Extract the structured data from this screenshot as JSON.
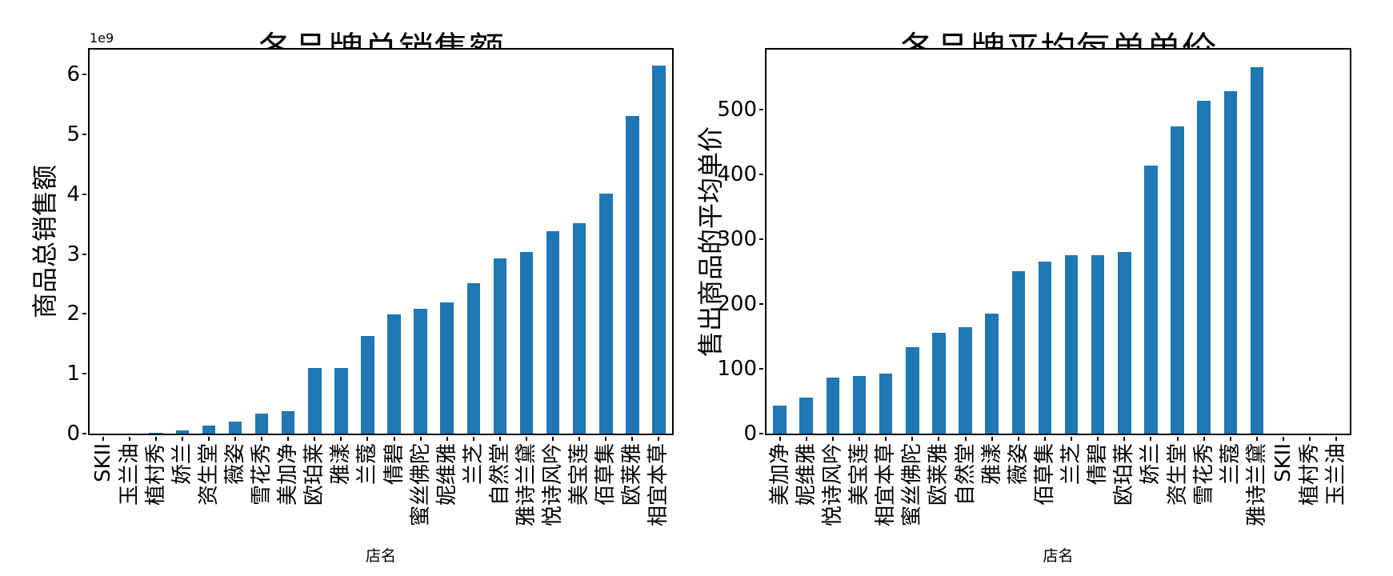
{
  "style": {
    "background": "#ffffff",
    "bar_color": "#1f77b4",
    "spine_color": "#000000",
    "text_color": "#000000"
  },
  "chart_data": [
    {
      "type": "bar",
      "title": "各品牌总销售额",
      "xlabel": "店名",
      "ylabel": "商品总销售额",
      "y_offset_text": "1e9",
      "value_unit_multiplier": 1000000000,
      "categories": [
        "SKII",
        "玉兰油",
        "植村秀",
        "娇兰",
        "资生堂",
        "薇姿",
        "雪花秀",
        "美加净",
        "欧珀莱",
        "雅漾",
        "兰蔻",
        "倩碧",
        "蜜丝佛陀",
        "妮维雅",
        "兰芝",
        "自然堂",
        "雅诗兰黛",
        "悦诗风吟",
        "美宝莲",
        "佰草集",
        "欧莱雅",
        "相宜本草"
      ],
      "values": [
        0.002,
        0.005,
        0.009,
        0.05,
        0.14,
        0.2,
        0.34,
        0.37,
        1.1,
        1.1,
        1.63,
        1.99,
        2.08,
        2.2,
        2.52,
        2.93,
        3.03,
        3.38,
        3.52,
        4.01,
        5.31,
        6.15
      ],
      "yticks": [
        0,
        1,
        2,
        3,
        4,
        5,
        6
      ],
      "ylim": [
        0,
        6.42
      ],
      "grid": false,
      "legend": null,
      "bar_orientation": "vertical",
      "xtick_rotation_deg": 90
    },
    {
      "type": "bar",
      "title": "各品牌平均每单单价",
      "xlabel": "店名",
      "ylabel": "售出商品的平均单价",
      "y_offset_text": "",
      "value_unit_multiplier": 1,
      "categories": [
        "美加净",
        "妮维雅",
        "悦诗风吟",
        "美宝莲",
        "相宜本草",
        "蜜丝佛陀",
        "欧莱雅",
        "自然堂",
        "雅漾",
        "薇姿",
        "佰草集",
        "兰芝",
        "倩碧",
        "欧珀莱",
        "娇兰",
        "资生堂",
        "雪花秀",
        "兰蔻",
        "雅诗兰黛",
        "SKII",
        "植村秀",
        "玉兰油"
      ],
      "values": [
        43,
        56,
        86,
        89,
        93,
        134,
        156,
        164,
        185,
        251,
        265,
        275,
        276,
        281,
        414,
        474,
        514,
        529,
        566,
        0,
        0,
        0
      ],
      "yticks": [
        0,
        100,
        200,
        300,
        400,
        500
      ],
      "ylim": [
        0,
        593
      ],
      "grid": false,
      "legend": null,
      "bar_orientation": "vertical",
      "xtick_rotation_deg": 90
    }
  ]
}
